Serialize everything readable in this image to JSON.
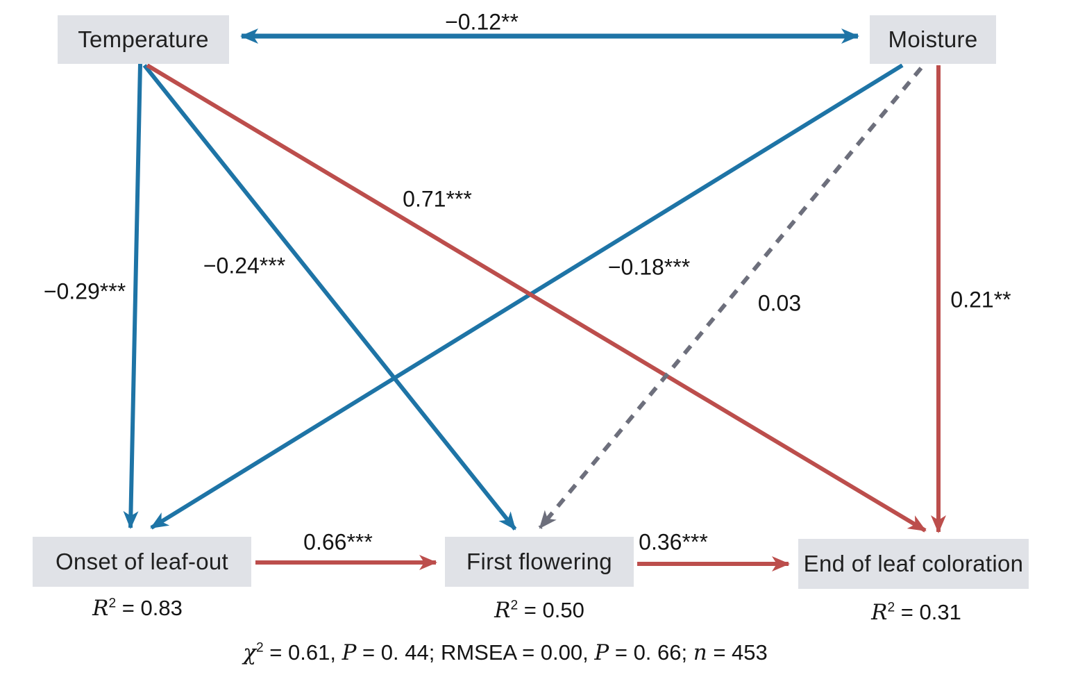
{
  "diagram": {
    "type": "path-diagram",
    "colors": {
      "positive_edge": "#bc4e4c",
      "negative_edge": "#1e74a6",
      "nonsignificant_edge": "#6d6f7c",
      "node_fill": "#e0e2e7",
      "text": "#141414"
    },
    "nodes": {
      "temperature": {
        "label": "Temperature"
      },
      "moisture": {
        "label": "Moisture"
      },
      "onset": {
        "label": "Onset of leaf-out",
        "r2": [
          {
            "text": "R",
            "italic": true
          },
          {
            "text": "2",
            "sup": true
          },
          {
            "text": " = 0.83"
          }
        ]
      },
      "flowering": {
        "label": "First flowering",
        "r2": [
          {
            "text": "R",
            "italic": true
          },
          {
            "text": "2",
            "sup": true
          },
          {
            "text": " = 0.50"
          }
        ]
      },
      "end_coloration": {
        "label": "End of leaf coloration",
        "r2": [
          {
            "text": "R",
            "italic": true
          },
          {
            "text": "2",
            "sup": true
          },
          {
            "text": " = 0.31"
          }
        ]
      }
    },
    "edges": {
      "temperature_moisture": {
        "label": "−0.12**",
        "style": "solid",
        "color": "#1e74a6",
        "bidirectional": true
      },
      "temperature_onset": {
        "label": "−0.29***",
        "style": "solid",
        "color": "#1e74a6"
      },
      "temperature_flowering": {
        "label": "−0.24***",
        "style": "solid",
        "color": "#1e74a6"
      },
      "temperature_end": {
        "label": "0.71***",
        "style": "solid",
        "color": "#bc4e4c"
      },
      "moisture_onset": {
        "label": "−0.18***",
        "style": "solid",
        "color": "#1e74a6"
      },
      "moisture_flowering": {
        "label": "0.03",
        "style": "dashed",
        "color": "#6d6f7c"
      },
      "moisture_end": {
        "label": "0.21**",
        "style": "solid",
        "color": "#bc4e4c"
      },
      "onset_flowering": {
        "label": "0.66***",
        "style": "solid",
        "color": "#bc4e4c"
      },
      "flowering_end": {
        "label": "0.36***",
        "style": "solid",
        "color": "#bc4e4c"
      }
    },
    "stats_line": [
      {
        "text": "χ",
        "italic": true
      },
      {
        "text": "2",
        "sup": true
      },
      {
        "text": " = 0.61, "
      },
      {
        "text": "P",
        "italic": true
      },
      {
        "text": " = 0. 44; RMSEA = 0.00, "
      },
      {
        "text": "P",
        "italic": true
      },
      {
        "text": " = 0. 66; "
      },
      {
        "text": "n",
        "italic": true
      },
      {
        "text": " = 453"
      }
    ]
  }
}
